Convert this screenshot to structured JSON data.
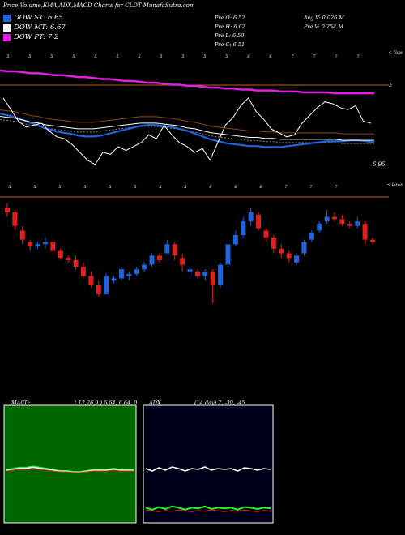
{
  "header": {
    "title": "Price,Volume,EMA,ADX,MACD Charts for CLDT MunafaSutra.com"
  },
  "legend": [
    {
      "label": "DOW ST: 6.65",
      "color": "#1e64dc"
    },
    {
      "label": "DOW MT: 6.67",
      "color": "#ffffff"
    },
    {
      "label": "DOW PT: 7.2",
      "color": "#e020e0"
    }
  ],
  "stats": {
    "open": "Pre  O: 6.52",
    "high": "Pre  H: 6.62",
    "low": "Pre  L: 6.50",
    "close": "Pre  C: 6.51",
    "avg_vol": "Avg V: 0.026  M",
    "pre_vol": "Pre  V: 0.254  M"
  },
  "upper_chart": {
    "price_label": "5.95",
    "right_label": "5",
    "top_label": "< Tops",
    "low_label": "< Lows",
    "top_markers": [
      "5",
      "5",
      "5",
      "5",
      "5",
      "5",
      "5",
      "5",
      "5",
      "5",
      "5",
      "6",
      "6",
      "7",
      "7",
      "7",
      "7"
    ],
    "low_markers": [
      "5",
      "5",
      "5",
      "5",
      "5",
      "5",
      "5",
      "5",
      "6",
      "6",
      "6",
      "7",
      "7",
      "7"
    ],
    "colors": {
      "pt": "#e020e0",
      "st": "#1e64dc",
      "ref": "#c06010"
    }
  },
  "macd": {
    "label": "MACD:",
    "params": "( 12,26,9 ) 6.64,  6.64,  0",
    "bg": "#006600"
  },
  "adx": {
    "label": "ADX",
    "params": "(14  day) 7,  -39,  -45",
    "bg": "#00001a"
  },
  "chart_data": {
    "type": "candlestick",
    "candles": [
      {
        "o": 6.9,
        "h": 6.92,
        "l": 6.86,
        "c": 6.88,
        "up": false
      },
      {
        "o": 6.88,
        "h": 6.89,
        "l": 6.8,
        "c": 6.82,
        "up": false
      },
      {
        "o": 6.8,
        "h": 6.82,
        "l": 6.74,
        "c": 6.76,
        "up": false
      },
      {
        "o": 6.75,
        "h": 6.76,
        "l": 6.71,
        "c": 6.73,
        "up": false
      },
      {
        "o": 6.73,
        "h": 6.75,
        "l": 6.72,
        "c": 6.74,
        "up": true
      },
      {
        "o": 6.74,
        "h": 6.77,
        "l": 6.72,
        "c": 6.75,
        "up": true
      },
      {
        "o": 6.75,
        "h": 6.76,
        "l": 6.7,
        "c": 6.71,
        "up": false
      },
      {
        "o": 6.71,
        "h": 6.72,
        "l": 6.67,
        "c": 6.68,
        "up": false
      },
      {
        "o": 6.68,
        "h": 6.69,
        "l": 6.66,
        "c": 6.67,
        "up": false
      },
      {
        "o": 6.67,
        "h": 6.69,
        "l": 6.63,
        "c": 6.64,
        "up": false
      },
      {
        "o": 6.64,
        "h": 6.66,
        "l": 6.59,
        "c": 6.6,
        "up": false
      },
      {
        "o": 6.6,
        "h": 6.62,
        "l": 6.55,
        "c": 6.56,
        "up": false
      },
      {
        "o": 6.56,
        "h": 6.58,
        "l": 6.51,
        "c": 6.52,
        "up": false
      },
      {
        "o": 6.52,
        "h": 6.61,
        "l": 6.52,
        "c": 6.6,
        "up": true
      },
      {
        "o": 6.58,
        "h": 6.6,
        "l": 6.57,
        "c": 6.59,
        "up": true
      },
      {
        "o": 6.59,
        "h": 6.64,
        "l": 6.58,
        "c": 6.63,
        "up": true
      },
      {
        "o": 6.6,
        "h": 6.62,
        "l": 6.58,
        "c": 6.61,
        "up": true
      },
      {
        "o": 6.61,
        "h": 6.64,
        "l": 6.6,
        "c": 6.63,
        "up": true
      },
      {
        "o": 6.63,
        "h": 6.66,
        "l": 6.62,
        "c": 6.65,
        "up": true
      },
      {
        "o": 6.65,
        "h": 6.7,
        "l": 6.64,
        "c": 6.69,
        "up": true
      },
      {
        "o": 6.69,
        "h": 6.7,
        "l": 6.66,
        "c": 6.67,
        "up": false
      },
      {
        "o": 6.7,
        "h": 6.76,
        "l": 6.7,
        "c": 6.74,
        "up": true
      },
      {
        "o": 6.74,
        "h": 6.75,
        "l": 6.67,
        "c": 6.69,
        "up": false
      },
      {
        "o": 6.68,
        "h": 6.7,
        "l": 6.62,
        "c": 6.65,
        "up": false
      },
      {
        "o": 6.62,
        "h": 6.64,
        "l": 6.6,
        "c": 6.63,
        "up": true
      },
      {
        "o": 6.62,
        "h": 6.63,
        "l": 6.59,
        "c": 6.6,
        "up": false
      },
      {
        "o": 6.6,
        "h": 6.63,
        "l": 6.58,
        "c": 6.62,
        "up": true
      },
      {
        "o": 6.62,
        "h": 6.63,
        "l": 6.48,
        "c": 6.56,
        "up": false
      },
      {
        "o": 6.56,
        "h": 6.66,
        "l": 6.55,
        "c": 6.65,
        "up": true
      },
      {
        "o": 6.65,
        "h": 6.75,
        "l": 6.64,
        "c": 6.74,
        "up": true
      },
      {
        "o": 6.74,
        "h": 6.8,
        "l": 6.73,
        "c": 6.78,
        "up": true
      },
      {
        "o": 6.78,
        "h": 6.86,
        "l": 6.77,
        "c": 6.84,
        "up": true
      },
      {
        "o": 6.84,
        "h": 6.9,
        "l": 6.82,
        "c": 6.88,
        "up": true
      },
      {
        "o": 6.87,
        "h": 6.88,
        "l": 6.8,
        "c": 6.81,
        "up": false
      },
      {
        "o": 6.8,
        "h": 6.81,
        "l": 6.75,
        "c": 6.77,
        "up": false
      },
      {
        "o": 6.77,
        "h": 6.78,
        "l": 6.7,
        "c": 6.72,
        "up": false
      },
      {
        "o": 6.72,
        "h": 6.74,
        "l": 6.68,
        "c": 6.7,
        "up": false
      },
      {
        "o": 6.7,
        "h": 6.71,
        "l": 6.66,
        "c": 6.68,
        "up": false
      },
      {
        "o": 6.66,
        "h": 6.7,
        "l": 6.65,
        "c": 6.69,
        "up": true
      },
      {
        "o": 6.7,
        "h": 6.76,
        "l": 6.69,
        "c": 6.75,
        "up": true
      },
      {
        "o": 6.76,
        "h": 6.8,
        "l": 6.75,
        "c": 6.79,
        "up": true
      },
      {
        "o": 6.8,
        "h": 6.84,
        "l": 6.79,
        "c": 6.83,
        "up": true
      },
      {
        "o": 6.84,
        "h": 6.89,
        "l": 6.83,
        "c": 6.86,
        "up": true
      },
      {
        "o": 6.86,
        "h": 6.88,
        "l": 6.84,
        "c": 6.85,
        "up": false
      },
      {
        "o": 6.85,
        "h": 6.87,
        "l": 6.82,
        "c": 6.83,
        "up": false
      },
      {
        "o": 6.83,
        "h": 6.84,
        "l": 6.81,
        "c": 6.82,
        "up": false
      },
      {
        "o": 6.82,
        "h": 6.86,
        "l": 6.81,
        "c": 6.84,
        "up": true
      },
      {
        "o": 6.83,
        "h": 6.84,
        "l": 6.74,
        "c": 6.76,
        "up": false
      },
      {
        "o": 6.76,
        "h": 6.77,
        "l": 6.74,
        "c": 6.75,
        "up": false
      }
    ],
    "series": [
      {
        "name": "DOW PT",
        "color": "#e020e0",
        "values": [
          7.4,
          7.39,
          7.39,
          7.38,
          7.37,
          7.37,
          7.36,
          7.35,
          7.35,
          7.34,
          7.33,
          7.33,
          7.32,
          7.31,
          7.31,
          7.3,
          7.29,
          7.29,
          7.28,
          7.27,
          7.27,
          7.26,
          7.25,
          7.25,
          7.24,
          7.24,
          7.23,
          7.22,
          7.22,
          7.21,
          7.21,
          7.2,
          7.2,
          7.19,
          7.19,
          7.19,
          7.18,
          7.18,
          7.18,
          7.17,
          7.17,
          7.17,
          7.17,
          7.16,
          7.16,
          7.16,
          7.16,
          7.16,
          7.16
        ]
      },
      {
        "name": "DOW ST",
        "color": "#1e64dc",
        "values": [
          6.95,
          6.93,
          6.91,
          6.88,
          6.85,
          6.82,
          6.79,
          6.77,
          6.75,
          6.74,
          6.72,
          6.71,
          6.71,
          6.72,
          6.74,
          6.76,
          6.78,
          6.8,
          6.82,
          6.83,
          6.83,
          6.82,
          6.81,
          6.79,
          6.77,
          6.74,
          6.71,
          6.68,
          6.66,
          6.64,
          6.63,
          6.62,
          6.61,
          6.61,
          6.6,
          6.6,
          6.6,
          6.61,
          6.62,
          6.63,
          6.64,
          6.65,
          6.66,
          6.66,
          6.66,
          6.67,
          6.67,
          6.66,
          6.65
        ]
      },
      {
        "name": "DOW MT",
        "color": "#ffffff",
        "values": [
          6.92,
          6.91,
          6.9,
          6.88,
          6.86,
          6.85,
          6.83,
          6.82,
          6.81,
          6.8,
          6.79,
          6.79,
          6.79,
          6.8,
          6.81,
          6.82,
          6.83,
          6.84,
          6.85,
          6.85,
          6.85,
          6.84,
          6.83,
          6.82,
          6.8,
          6.79,
          6.77,
          6.75,
          6.74,
          6.73,
          6.72,
          6.71,
          6.7,
          6.7,
          6.69,
          6.69,
          6.68,
          6.68,
          6.68,
          6.68,
          6.68,
          6.68,
          6.68,
          6.68,
          6.67,
          6.67,
          6.67,
          6.67,
          6.67
        ]
      }
    ],
    "macd_values": [
      0.0,
      0.01,
      0.02,
      0.02,
      0.03,
      0.02,
      0.01,
      0.0,
      -0.01,
      -0.01,
      -0.02,
      -0.02,
      -0.01,
      0.0,
      0.0,
      0.0,
      0.01,
      0.0,
      0.0,
      0.0
    ],
    "adx_values": [
      12,
      9,
      13,
      10,
      14,
      12,
      9,
      12,
      11,
      14,
      10,
      12,
      11,
      12,
      9,
      13,
      12,
      10,
      12,
      11
    ],
    "ylim": [
      6.4,
      7.5
    ]
  }
}
